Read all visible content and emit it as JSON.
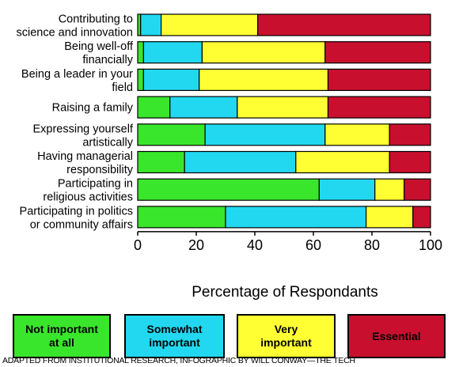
{
  "chart_data": {
    "type": "bar",
    "stacked": true,
    "orientation": "horizontal",
    "categories": [
      "Contributing to\nscience and innovation",
      "Being well-off\nfinancially",
      "Being a leader in your\nfield",
      "Raising a family",
      "Expressing yourself\nartistically",
      "Having managerial\nresponsibility",
      "Participating in\nreligious activities",
      "Participating in politics\nor community affairs"
    ],
    "series": [
      {
        "name": "Not important\nat all",
        "color": "#39e62b",
        "values": [
          1,
          2,
          2,
          11,
          23,
          16,
          62,
          30
        ]
      },
      {
        "name": "Somewhat\nimportant",
        "color": "#22d8f0",
        "values": [
          7,
          20,
          19,
          23,
          41,
          38,
          19,
          48
        ]
      },
      {
        "name": "Very\nimportant",
        "color": "#ffff33",
        "values": [
          33,
          42,
          44,
          31,
          22,
          32,
          10,
          16
        ]
      },
      {
        "name": "Essential",
        "color": "#c8102e",
        "values": [
          59,
          36,
          35,
          35,
          14,
          14,
          9,
          6
        ]
      }
    ],
    "xlabel": "Percentage of Respondants",
    "ylabel": "",
    "xlim": [
      0,
      100
    ],
    "xticks": [
      "0",
      "20",
      "40",
      "60",
      "80",
      "100"
    ],
    "grid": false,
    "legend": "bottom"
  },
  "credit": "ADAPTED FROM INSTITUTIONAL RESEARCH, INFOGRAPHIC BY WILL CONWAY—THE TECH"
}
